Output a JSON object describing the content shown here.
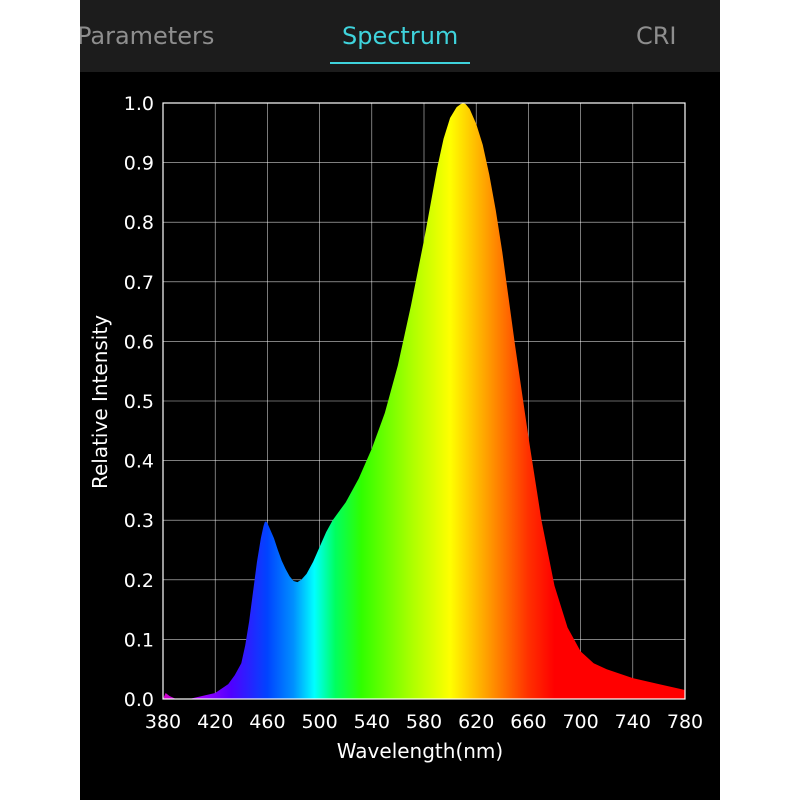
{
  "tabs": [
    {
      "label": "Parameters",
      "active": false
    },
    {
      "label": "Spectrum",
      "active": true
    },
    {
      "label": "CRI",
      "active": false
    }
  ],
  "colors": {
    "background": "#000000",
    "tabbar": "#1c1c1c",
    "accent": "#3fd3dc",
    "inactive_tab": "#8e8e8e",
    "grid": "#ffffff"
  },
  "chart_data": {
    "type": "area",
    "xlabel": "Wavelength(nm)",
    "ylabel": "Relative Intensity",
    "xlim": [
      380,
      780
    ],
    "ylim": [
      0,
      1.0
    ],
    "xticks": [
      380,
      420,
      460,
      500,
      540,
      580,
      620,
      660,
      700,
      740,
      780
    ],
    "yticks": [
      "0.0",
      "0.1",
      "0.2",
      "0.3",
      "0.4",
      "0.5",
      "0.6",
      "0.7",
      "0.8",
      "0.9",
      "1.0"
    ],
    "grid": true,
    "fill": "visible-spectrum gradient",
    "series": [
      {
        "x": [
          380,
          382,
          385,
          390,
          400,
          410,
          420,
          430,
          435,
          440,
          443,
          446,
          449,
          452,
          455,
          457,
          458,
          459,
          460,
          462,
          465,
          468,
          471,
          474,
          477,
          480,
          483,
          486,
          490,
          495,
          500,
          505,
          510,
          520,
          530,
          540,
          550,
          560,
          570,
          580,
          585,
          590,
          595,
          600,
          605,
          608,
          610,
          612,
          615,
          620,
          625,
          630,
          635,
          640,
          650,
          660,
          670,
          680,
          690,
          700,
          710,
          720,
          740,
          760,
          780
        ],
        "y": [
          0.0,
          0.01,
          0.005,
          0.0,
          0.0,
          0.005,
          0.01,
          0.025,
          0.04,
          0.06,
          0.09,
          0.13,
          0.18,
          0.23,
          0.27,
          0.29,
          0.297,
          0.298,
          0.295,
          0.285,
          0.27,
          0.25,
          0.232,
          0.218,
          0.206,
          0.198,
          0.196,
          0.2,
          0.21,
          0.23,
          0.255,
          0.28,
          0.3,
          0.33,
          0.37,
          0.42,
          0.48,
          0.56,
          0.66,
          0.77,
          0.83,
          0.89,
          0.94,
          0.975,
          0.993,
          0.998,
          1.0,
          0.998,
          0.99,
          0.965,
          0.93,
          0.88,
          0.82,
          0.75,
          0.59,
          0.44,
          0.3,
          0.19,
          0.12,
          0.08,
          0.06,
          0.05,
          0.035,
          0.025,
          0.015
        ]
      }
    ]
  }
}
